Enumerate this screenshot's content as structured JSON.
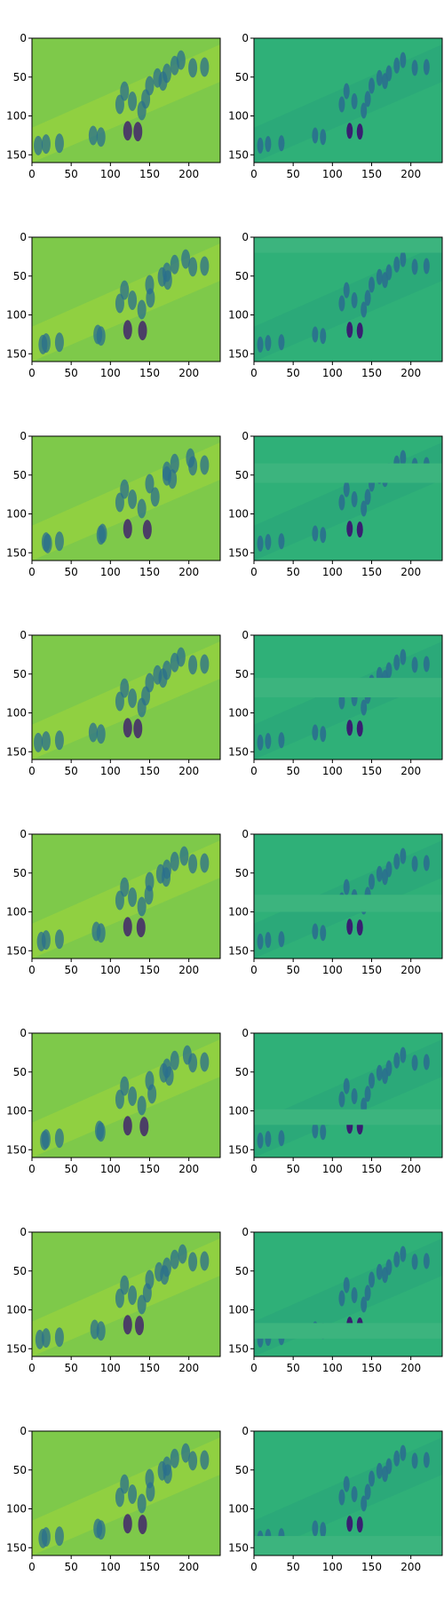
{
  "figure": {
    "rows": 8,
    "cols": 2,
    "colormap": "viridis",
    "x_ticks": [
      "0",
      "50",
      "100",
      "150",
      "200"
    ],
    "y_ticks": [
      "0",
      "50",
      "100",
      "150"
    ],
    "x_tick_values": [
      0,
      50,
      100,
      150,
      200
    ],
    "y_tick_values": [
      0,
      50,
      100,
      150
    ],
    "x_range": [
      0,
      240
    ],
    "y_range": [
      0,
      160
    ],
    "colors": {
      "bg_left": "#7ec94a",
      "bg_right": "#2fb078",
      "band_right": "#3cb47e",
      "figure_dark": "#3b0f70",
      "figure_mid": "#2a6f8e",
      "axis": "#000000"
    },
    "panels": [
      {
        "left_shift": 0,
        "right_band": null
      },
      {
        "left_shift": 6,
        "right_band": [
          0,
          20
        ]
      },
      {
        "left_shift": 12,
        "right_band": [
          35,
          60
        ]
      },
      {
        "left_shift": 0,
        "right_band": [
          55,
          80
        ]
      },
      {
        "left_shift": 4,
        "right_band": [
          78,
          100
        ]
      },
      {
        "left_shift": 8,
        "right_band": [
          98,
          118
        ]
      },
      {
        "left_shift": 2,
        "right_band": [
          117,
          137
        ]
      },
      {
        "left_shift": 6,
        "right_band": [
          135,
          160
        ]
      }
    ]
  }
}
